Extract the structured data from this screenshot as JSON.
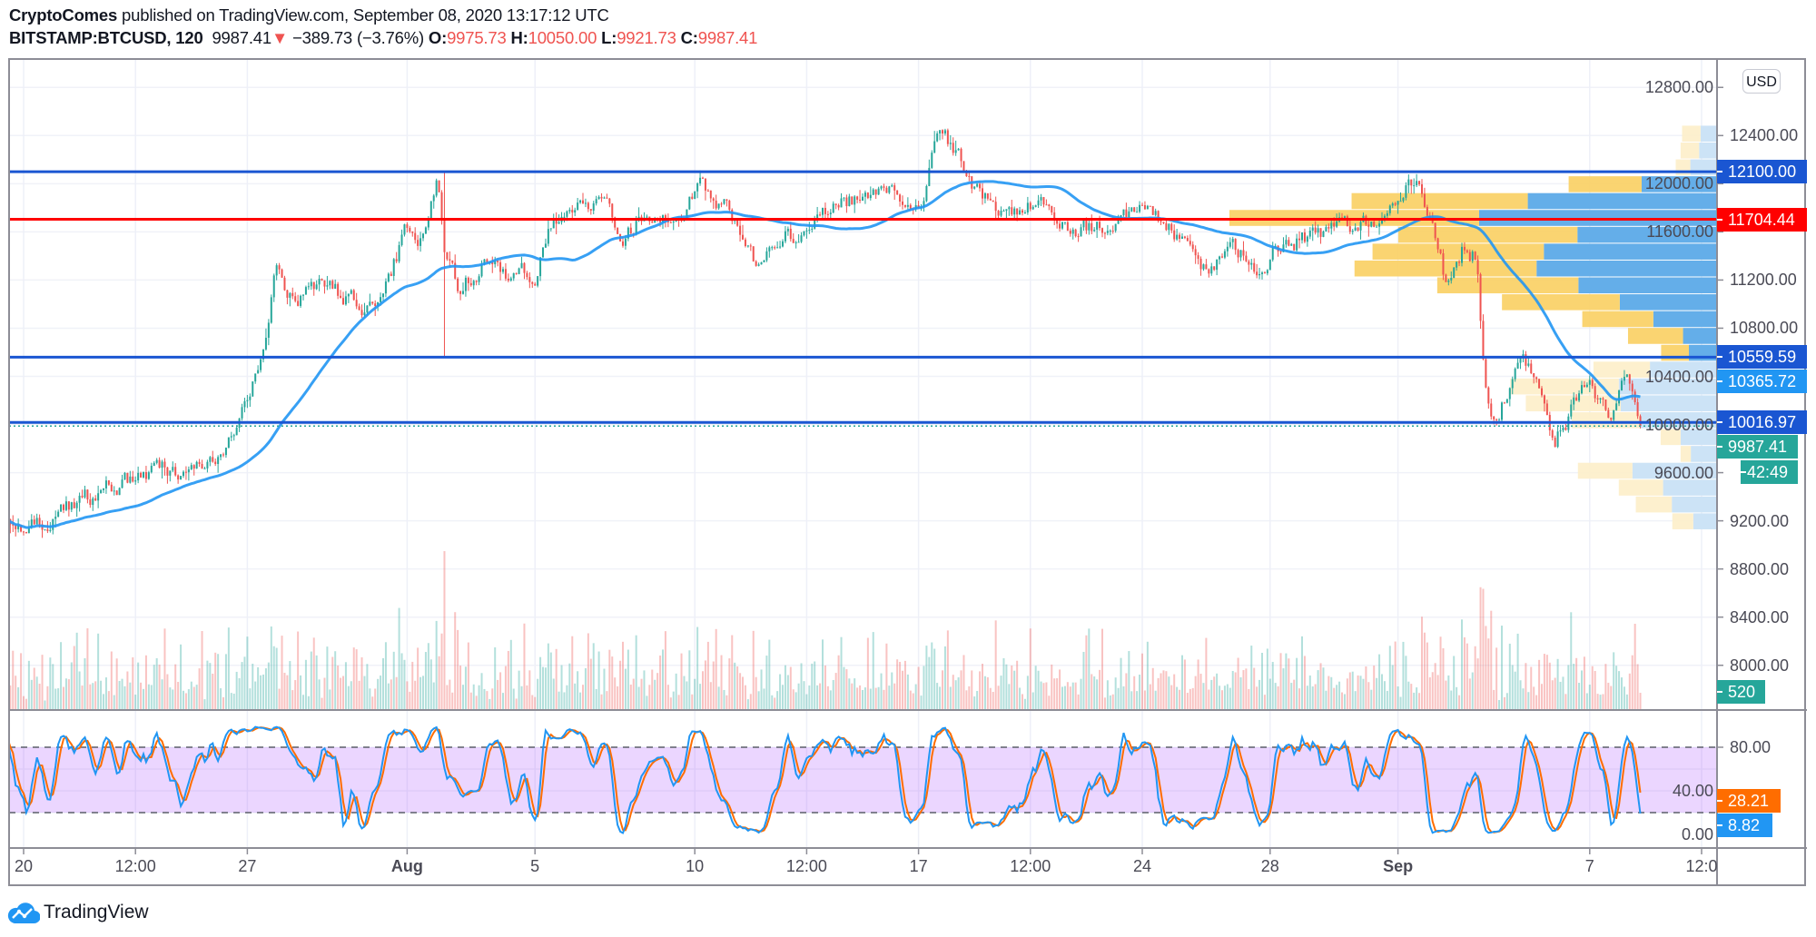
{
  "header": {
    "author": "CryptoComes",
    "published": " published on TradingView.com, September 08, 2020 13:17:12 UTC",
    "symbol": "BITSTAMP:BTCUSD, 120",
    "last": "9987.41",
    "down_arrow": "▼",
    "change": "−389.73 (−3.76%)",
    "o_label": "O:",
    "o": "9975.73",
    "h_label": "H:",
    "h": "10050.00",
    "l_label": "L:",
    "l": "9921.73",
    "c_label": "C:",
    "c": "9987.41"
  },
  "currency_badge": "USD",
  "footer": {
    "brand": "TradingView"
  },
  "colors": {
    "up": "#26a69a",
    "down": "#ef5350",
    "ma": "#2196f3",
    "level_blue": "#1a56d2",
    "level_red": "#ff0000",
    "stoch_k": "#2196f3",
    "stoch_d": "#ff6d00",
    "profile_up": "#f9cf62",
    "profile_down": "#5caae8",
    "profile_up_light": "#fdeec9",
    "profile_down_light": "#c9e2f6"
  },
  "chart_data": {
    "type": "candlestick",
    "symbol": "BITSTAMP:BTCUSD",
    "interval": "120",
    "ylim": [
      7628,
      13036
    ],
    "y_ticks": [
      "12800.00",
      "12400.00",
      "12000.00",
      "11600.00",
      "11200.00",
      "10800.00",
      "10400.00",
      "10000.00",
      "9600.00",
      "9200.00",
      "8800.00",
      "8400.00",
      "8000.00"
    ],
    "x_ticks": [
      {
        "day": 0,
        "label": "20",
        "month": false
      },
      {
        "day": 3.5,
        "label": "12:00",
        "month": false
      },
      {
        "day": 7,
        "label": "27",
        "month": false
      },
      {
        "day": 12,
        "label": "Aug",
        "month": true
      },
      {
        "day": 16,
        "label": "5",
        "month": false
      },
      {
        "day": 21,
        "label": "10",
        "month": false
      },
      {
        "day": 24.5,
        "label": "12:00",
        "month": false
      },
      {
        "day": 28,
        "label": "17",
        "month": false
      },
      {
        "day": 31.5,
        "label": "12:00",
        "month": false
      },
      {
        "day": 35,
        "label": "24",
        "month": false
      },
      {
        "day": 39,
        "label": "28",
        "month": false
      },
      {
        "day": 43,
        "label": "Sep",
        "month": true
      },
      {
        "day": 49,
        "label": "7",
        "month": false
      },
      {
        "day": 52.5,
        "label": "12:0",
        "month": false
      }
    ],
    "close_keypoints_day_price": [
      [
        -0.5,
        9150
      ],
      [
        1.1,
        9210
      ],
      [
        1.6,
        9360
      ],
      [
        2.9,
        9500
      ],
      [
        4.0,
        9600
      ],
      [
        5.4,
        9650
      ],
      [
        6.3,
        9800
      ],
      [
        6.7,
        9990
      ],
      [
        7.2,
        10330
      ],
      [
        7.6,
        10625
      ],
      [
        7.9,
        11300
      ],
      [
        8.5,
        11015
      ],
      [
        9.4,
        11160
      ],
      [
        10.1,
        11060
      ],
      [
        10.6,
        11000
      ],
      [
        11.2,
        11080
      ],
      [
        11.6,
        11350
      ],
      [
        12.05,
        11650
      ],
      [
        12.3,
        11520
      ],
      [
        12.6,
        11750
      ],
      [
        12.95,
        12000
      ],
      [
        13.2,
        11400
      ],
      [
        13.6,
        11150
      ],
      [
        14.1,
        11260
      ],
      [
        14.75,
        11400
      ],
      [
        15.1,
        11250
      ],
      [
        16.0,
        11260
      ],
      [
        16.6,
        11700
      ],
      [
        17.3,
        11850
      ],
      [
        18.4,
        11750
      ],
      [
        18.7,
        11500
      ],
      [
        19.5,
        11800
      ],
      [
        20.5,
        11700
      ],
      [
        21.1,
        11990
      ],
      [
        21.6,
        11890
      ],
      [
        22.3,
        11700
      ],
      [
        22.9,
        11350
      ],
      [
        23.8,
        11550
      ],
      [
        24.5,
        11600
      ],
      [
        25.2,
        11800
      ],
      [
        26.7,
        11940
      ],
      [
        28.1,
        11850
      ],
      [
        28.5,
        12430
      ],
      [
        29.2,
        12280
      ],
      [
        29.7,
        11990
      ],
      [
        30.3,
        11800
      ],
      [
        31.0,
        11750
      ],
      [
        31.7,
        11850
      ],
      [
        32.8,
        11600
      ],
      [
        33.5,
        11650
      ],
      [
        34.6,
        11700
      ],
      [
        35.3,
        11800
      ],
      [
        36.0,
        11600
      ],
      [
        36.8,
        11260
      ],
      [
        37.8,
        11500
      ],
      [
        38.6,
        11310
      ],
      [
        39.3,
        11500
      ],
      [
        40.4,
        11550
      ],
      [
        41.5,
        11650
      ],
      [
        42.5,
        11750
      ],
      [
        43.7,
        12070
      ],
      [
        44.5,
        11170
      ],
      [
        45.0,
        11450
      ],
      [
        45.45,
        11400
      ],
      [
        45.7,
        10460
      ],
      [
        46.05,
        10005
      ],
      [
        46.9,
        10610
      ],
      [
        47.9,
        9877
      ],
      [
        49.0,
        10360
      ],
      [
        49.6,
        10030
      ],
      [
        50.1,
        10460
      ],
      [
        50.6,
        9987.41
      ]
    ],
    "spike_wick": {
      "day": 13.18,
      "high": 12100,
      "low": 10570
    },
    "moving_average": {
      "last_label": "10365.72",
      "last": 10365.72
    },
    "levels": [
      {
        "price": 12100.0,
        "label": "12100.00",
        "color": "#1a56d2"
      },
      {
        "price": 11704.44,
        "label": "11704.44",
        "color": "#ff0000"
      },
      {
        "price": 10559.59,
        "label": "10559.59",
        "color": "#1a56d2"
      },
      {
        "price": 10016.97,
        "label": "10016.97",
        "color": "#1a56d2"
      }
    ],
    "last_price": {
      "value": 9987.41,
      "label": "9987.41",
      "countdown": "42:49"
    },
    "volume": {
      "last": 520,
      "label": "520"
    },
    "volume_profile": {
      "row_top_price": 12482,
      "row_size": 140,
      "rows_up_down_valuearea": [
        [
          3.8,
          3.2,
          0
        ],
        [
          3.8,
          3.5,
          0
        ],
        [
          3.0,
          5.3,
          0
        ],
        [
          15.0,
          15.3,
          1
        ],
        [
          36.2,
          38.7,
          1
        ],
        [
          51.3,
          48.7,
          1
        ],
        [
          36.8,
          28.5,
          1
        ],
        [
          35.2,
          35.4,
          1
        ],
        [
          37.4,
          36.9,
          1
        ],
        [
          29.0,
          28.3,
          1
        ],
        [
          24.2,
          19.8,
          1
        ],
        [
          14.6,
          12.9,
          1
        ],
        [
          11.3,
          6.8,
          1
        ],
        [
          5.7,
          5.6,
          1
        ],
        [
          11.6,
          13.6,
          0
        ],
        [
          22.3,
          20.0,
          0
        ],
        [
          19.5,
          19.6,
          0
        ],
        [
          14.1,
          15.6,
          0
        ],
        [
          4.1,
          7.3,
          0
        ],
        [
          2.1,
          5.2,
          0
        ],
        [
          11.2,
          17.2,
          0
        ],
        [
          9.1,
          10.9,
          0
        ],
        [
          7.4,
          9.1,
          0
        ],
        [
          4.3,
          4.7,
          0
        ]
      ]
    },
    "stochastic": {
      "ylim": [
        0,
        100
      ],
      "bands": [
        20,
        80
      ],
      "y_ticks": [
        {
          "value": 80,
          "label": "80.00"
        },
        {
          "value": 40,
          "label": "40.00"
        },
        {
          "value": 0,
          "label": "0.00"
        }
      ],
      "k_last": 8.82,
      "k_label": "8.82",
      "d_last": 28.21,
      "d_label": "28.21"
    }
  }
}
